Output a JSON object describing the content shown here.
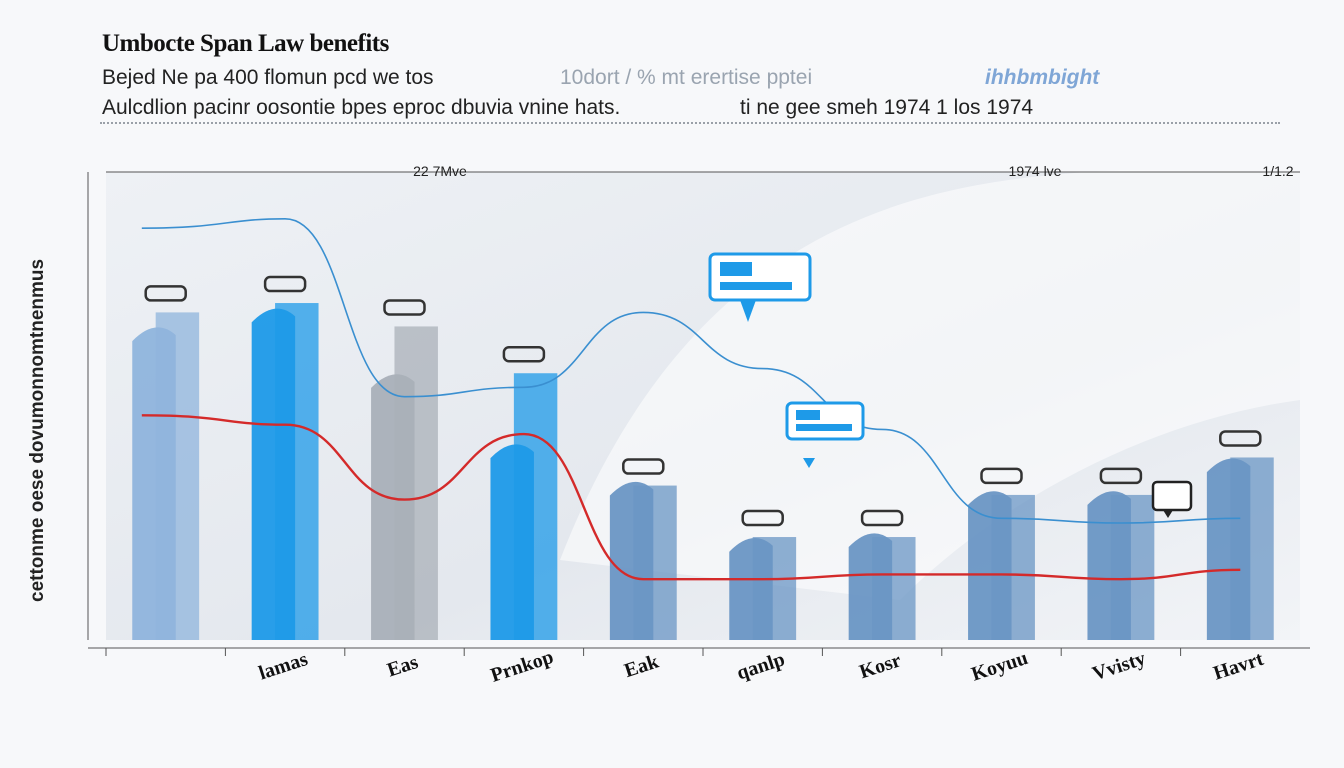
{
  "header": {
    "title": "Umbocte Span Law benefits",
    "subtitle_left_1": "Bejed Ne pa 400 flomun pcd we tos",
    "subtitle_left_2": "Aulcdlion pacinr oosontie bpes eproc dbuvia vnine hats.",
    "subtitle_mid_1": "10dort / % mt erertise pptei",
    "subtitle_mid_2": "ti ne gee smeh 1974 1 los 1974",
    "subtitle_right_1": "ihhbmbight"
  },
  "chart_data": {
    "type": "bar",
    "title": "Umbocte Span Law benefits",
    "ylabel": "cettonme oese dovumonnomtnenmus",
    "xlabel": "",
    "ylim": [
      0,
      100
    ],
    "grid": false,
    "top_annotations": [
      "22 7Mve",
      "1974 lve",
      "1/1.2"
    ],
    "categories": [
      "",
      "lamas",
      "Eas",
      "Prnkop",
      "Eak",
      "qanlp",
      "Kosr",
      "Koyuu",
      "Vvisty",
      "Havrt"
    ],
    "bars_front": [
      66,
      70,
      56,
      41,
      33,
      21,
      22,
      31,
      31,
      38
    ],
    "bars_back": [
      70,
      72,
      67,
      57,
      33,
      22,
      22,
      31,
      31,
      39
    ],
    "line_red": [
      48,
      46,
      30,
      44,
      13,
      13,
      14,
      14,
      13,
      15
    ],
    "line_blue": [
      88,
      90,
      52,
      54,
      70,
      58,
      45,
      26,
      25,
      26
    ],
    "colors": {
      "bar_primary": "#1e9ae8",
      "bar_secondary": "#6a96c4",
      "bar_grey": "#a9b0b8",
      "bar_light": "#8fb4dc",
      "line_red": "#d42a2a",
      "line_blue": "#3a8fd0",
      "axis": "#555555"
    }
  }
}
